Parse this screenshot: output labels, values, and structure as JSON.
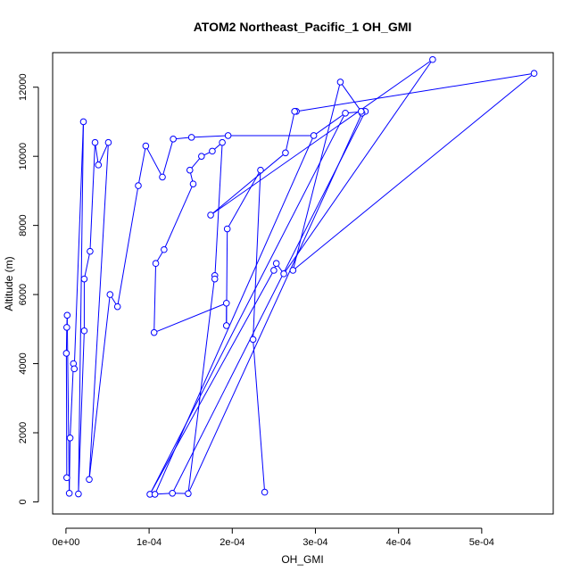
{
  "chart_data": {
    "type": "line",
    "title": "ATOM2 Northeast_Pacific_1 OH_GMI",
    "xlabel": "OH_GMI",
    "ylabel": "Altitude (m)",
    "xlim": [
      -1.6e-05,
      0.000586
    ],
    "ylim": [
      -350,
      13000
    ],
    "xticks": [
      0,
      0.0001,
      0.0002,
      0.0003,
      0.0004,
      0.0005
    ],
    "xtick_labels": [
      "0e+00",
      "1e-04",
      "2e-04",
      "3e-04",
      "4e-04",
      "5e-04"
    ],
    "yticks": [
      0,
      2000,
      4000,
      6000,
      8000,
      10000,
      12000
    ],
    "ytick_labels": [
      "0",
      "2000",
      "4000",
      "6000",
      "8000",
      "10000",
      "12000"
    ],
    "grid": false,
    "marker": "open-circle",
    "series": [
      {
        "color": "#0000ff",
        "points": [
          [
            1e-06,
            700
          ],
          [
            5e-07,
            4300
          ],
          [
            1e-06,
            5050
          ],
          [
            1.5e-06,
            5400
          ],
          [
            4e-06,
            250
          ],
          [
            5e-06,
            1850
          ],
          [
            9e-06,
            4000
          ],
          [
            1e-05,
            3850
          ],
          [
            2.1e-05,
            11000
          ],
          [
            1.5e-05,
            230
          ],
          [
            2.2e-05,
            4950
          ],
          [
            2.2e-05,
            6450
          ],
          [
            2.9e-05,
            7250
          ],
          [
            3.5e-05,
            10400
          ],
          [
            3.9e-05,
            9750
          ],
          [
            5.1e-05,
            10400
          ],
          [
            2.8e-05,
            650
          ],
          [
            5.3e-05,
            6000
          ],
          [
            6.2e-05,
            5650
          ],
          [
            8.7e-05,
            9150
          ],
          [
            9.6e-05,
            10300
          ],
          [
            0.000116,
            9400
          ],
          [
            0.000129,
            10500
          ],
          [
            0.000151,
            10550
          ],
          [
            0.000195,
            10600
          ],
          [
            0.000298,
            10600
          ],
          [
            0.000336,
            11250
          ],
          [
            0.00036,
            11300
          ],
          [
            0.000356,
            11250
          ],
          [
            0.000355,
            11300
          ],
          [
            0.00033,
            12150
          ],
          [
            0.000273,
            6700
          ],
          [
            0.000563,
            12400
          ],
          [
            0.000277,
            11300
          ],
          [
            0.000275,
            11300
          ],
          [
            0.000264,
            10100
          ],
          [
            0.000174,
            8300
          ],
          [
            0.000441,
            12800
          ],
          [
            0.000262,
            6600
          ],
          [
            0.000253,
            6900
          ],
          [
            0.00025,
            6700
          ],
          [
            0.000101,
            220
          ],
          [
            0.000107,
            220
          ],
          [
            0.000128,
            250
          ],
          [
            0.000147,
            240
          ],
          [
            0.000179,
            6550
          ],
          [
            0.000179,
            6450
          ],
          [
            0.000188,
            10400
          ],
          [
            0.000176,
            10150
          ],
          [
            0.000163,
            10000
          ],
          [
            0.000149,
            9600
          ],
          [
            0.000153,
            9200
          ],
          [
            0.000118,
            7300
          ],
          [
            0.000108,
            6900
          ],
          [
            0.000106,
            4900
          ],
          [
            0.000193,
            5750
          ],
          [
            0.000193,
            5100
          ],
          [
            0.000194,
            7900
          ],
          [
            0.000234,
            9600
          ],
          [
            0.000225,
            4700
          ],
          [
            0.000239,
            280
          ]
        ],
        "segments": [
          [
            0,
            1
          ],
          [
            1,
            2
          ],
          [
            2,
            3
          ],
          [
            3,
            4
          ],
          [
            4,
            5
          ],
          [
            5,
            6
          ],
          [
            6,
            7
          ],
          [
            7,
            8
          ],
          [
            8,
            9
          ],
          [
            9,
            10
          ],
          [
            10,
            11
          ],
          [
            11,
            12
          ],
          [
            12,
            13
          ],
          [
            13,
            14
          ],
          [
            14,
            15
          ],
          [
            15,
            16
          ],
          [
            16,
            17
          ],
          [
            17,
            18
          ],
          [
            18,
            19
          ],
          [
            19,
            20
          ],
          [
            20,
            21
          ],
          [
            21,
            22
          ],
          [
            22,
            23
          ],
          [
            23,
            24
          ],
          [
            24,
            25
          ],
          [
            25,
            26
          ],
          [
            26,
            27
          ],
          [
            27,
            28
          ],
          [
            28,
            29
          ],
          [
            29,
            30
          ],
          [
            30,
            31
          ],
          [
            31,
            32
          ],
          [
            32,
            33
          ],
          [
            33,
            34
          ],
          [
            34,
            35
          ],
          [
            35,
            36
          ],
          [
            36,
            37
          ],
          [
            37,
            38
          ],
          [
            38,
            39
          ],
          [
            39,
            40
          ],
          [
            40,
            41
          ],
          [
            41,
            42
          ],
          [
            42,
            43
          ],
          [
            43,
            44
          ],
          [
            44,
            45
          ],
          [
            45,
            46
          ],
          [
            46,
            47
          ],
          [
            47,
            48
          ],
          [
            48,
            49
          ],
          [
            49,
            50
          ],
          [
            50,
            51
          ],
          [
            51,
            52
          ],
          [
            52,
            53
          ],
          [
            53,
            54
          ],
          [
            54,
            55
          ],
          [
            55,
            56
          ],
          [
            56,
            57
          ],
          [
            57,
            58
          ],
          [
            58,
            59
          ],
          [
            59,
            60
          ],
          [
            41,
            26
          ],
          [
            42,
            25
          ],
          [
            43,
            27
          ],
          [
            44,
            28
          ]
        ]
      }
    ]
  }
}
